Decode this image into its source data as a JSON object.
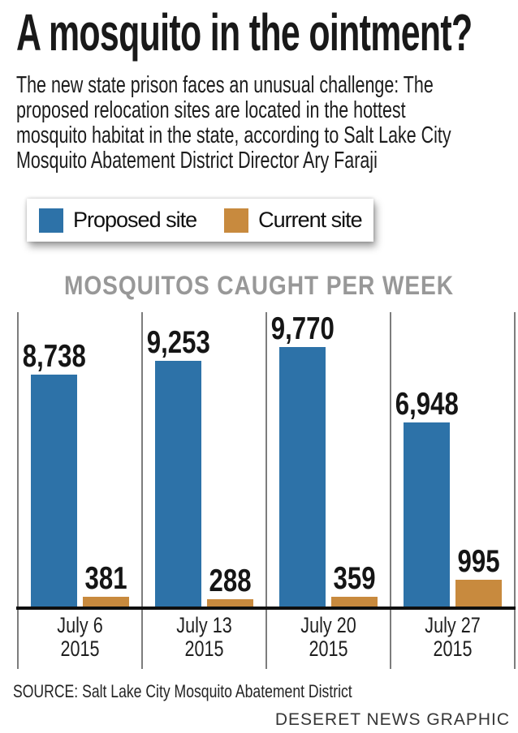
{
  "header": {
    "title": "A mosquito in the ointment?",
    "intro_lines": [
      "The new state prison faces an unusual challenge: The",
      "proposed relocation sites are located in the hottest",
      "mosquito habitat in the state, according to Salt Lake City",
      "Mosquito Abatement District Director Ary Faraji"
    ]
  },
  "legend": {
    "items": [
      {
        "label": "Proposed site",
        "color": "#2d72a8"
      },
      {
        "label": "Current site",
        "color": "#c88a3e"
      }
    ]
  },
  "chart_data": {
    "type": "bar",
    "title": "MOSQUITOS CAUGHT PER WEEK",
    "categories": [
      "July 6 2015",
      "July 13 2015",
      "July 20 2015",
      "July 27 2015"
    ],
    "category_lines": [
      [
        "July 6",
        "2015"
      ],
      [
        "July 13",
        "2015"
      ],
      [
        "July 20",
        "2015"
      ],
      [
        "July 27",
        "2015"
      ]
    ],
    "series": [
      {
        "name": "Proposed site",
        "color": "#2d72a8",
        "values": [
          8738,
          9253,
          9770,
          6948
        ],
        "labels": [
          "8,738",
          "9,253",
          "9,770",
          "6,948"
        ]
      },
      {
        "name": "Current site",
        "color": "#c88a3e",
        "values": [
          381,
          288,
          359,
          995
        ],
        "labels": [
          "381",
          "288",
          "359",
          "995"
        ]
      }
    ],
    "ylim": [
      0,
      11100
    ],
    "xlabel": "",
    "ylabel": "",
    "grid": "vertical-separators",
    "legend_position": "top"
  },
  "footer": {
    "source": "SOURCE: Salt Lake City Mosquito Abatement District",
    "credit": "DESERET NEWS GRAPHIC"
  },
  "colors": {
    "proposed_blue": "#2d72a8",
    "current_orange": "#c88a3e",
    "chart_title_gray": "#989898",
    "separator_gray": "#7d7d7d",
    "baseline_black": "#0f0f0f"
  }
}
